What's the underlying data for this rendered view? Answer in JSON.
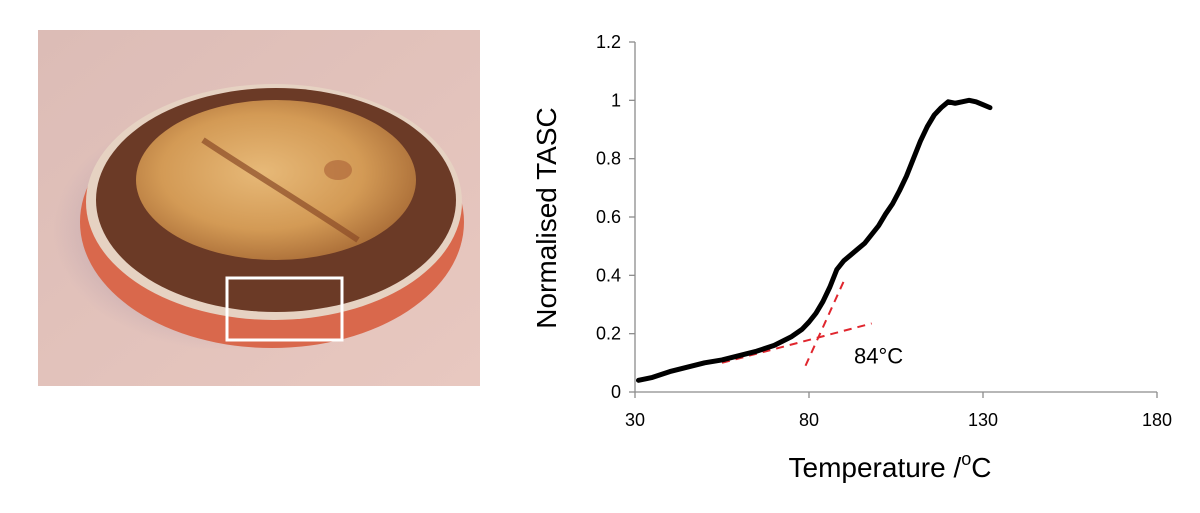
{
  "photo": {
    "subject": "sample-pan-photo",
    "highlight": "rectangle"
  },
  "chart_data": {
    "type": "line",
    "title": "",
    "xlabel": "Temperature /",
    "xlabel_super": "o",
    "xlabel_unit": "C",
    "ylabel": "Normalised TASC",
    "xlim": [
      30,
      180
    ],
    "ylim": [
      0,
      1.2
    ],
    "xticks": [
      30,
      80,
      130,
      180
    ],
    "yticks": [
      0,
      0.2,
      0.4,
      0.6,
      0.8,
      1,
      1.2
    ],
    "xtick_labels": [
      "30",
      "80",
      "130",
      "180"
    ],
    "ytick_labels": [
      "0",
      "0.2",
      "0.4",
      "0.6",
      "0.8",
      "1",
      "1.2"
    ],
    "grid": false,
    "series": [
      {
        "name": "Normalised TASC",
        "color": "#000000",
        "x": [
          31,
          35,
          40,
          45,
          50,
          55,
          60,
          65,
          70,
          75,
          78,
          80,
          82,
          84,
          86,
          88,
          90,
          92,
          94,
          96,
          98,
          100,
          102,
          104,
          106,
          108,
          110,
          112,
          114,
          116,
          118,
          120,
          122,
          124,
          126,
          128,
          130,
          132
        ],
        "y": [
          0.04,
          0.05,
          0.07,
          0.085,
          0.1,
          0.11,
          0.125,
          0.14,
          0.16,
          0.19,
          0.215,
          0.24,
          0.27,
          0.31,
          0.36,
          0.42,
          0.45,
          0.47,
          0.49,
          0.51,
          0.54,
          0.57,
          0.61,
          0.645,
          0.69,
          0.74,
          0.8,
          0.86,
          0.91,
          0.95,
          0.975,
          0.995,
          0.99,
          0.995,
          1.0,
          0.995,
          0.985,
          0.975
        ]
      }
    ],
    "tangents": [
      {
        "name": "baseline-tangent",
        "x1": 55,
        "y1": 0.1,
        "x2": 98,
        "y2": 0.235,
        "color": "#e0262e"
      },
      {
        "name": "rising-tangent",
        "x1": 79,
        "y1": 0.09,
        "x2": 90,
        "y2": 0.38,
        "color": "#e0262e"
      }
    ],
    "annotations": [
      {
        "text": "84°C",
        "x": 100,
        "y": 0.125
      }
    ]
  }
}
